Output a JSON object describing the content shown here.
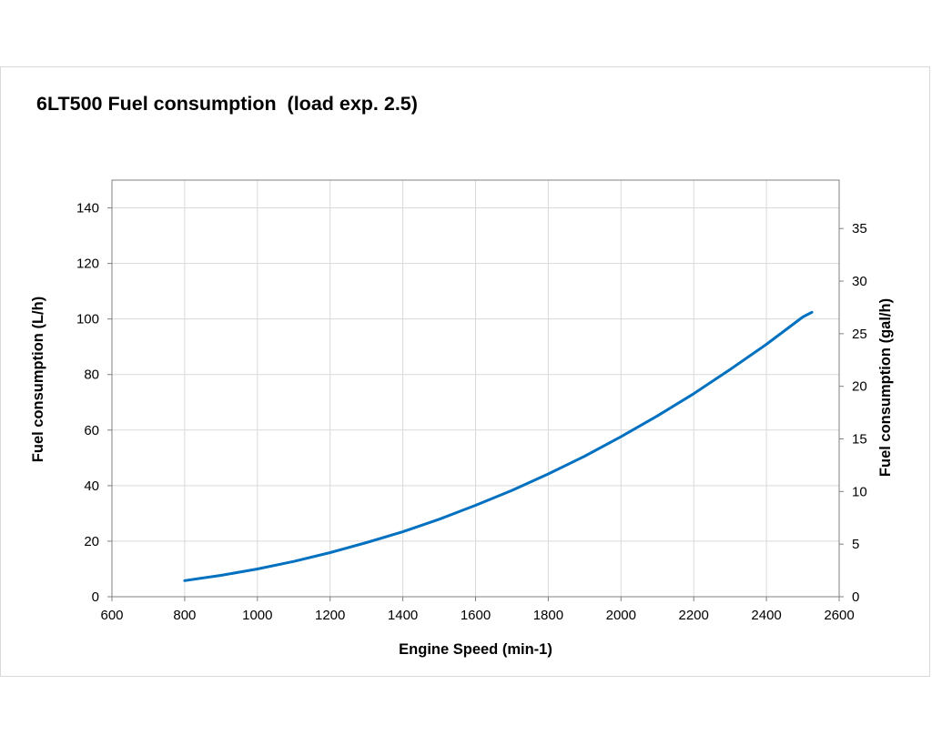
{
  "chart_data": {
    "type": "line",
    "title": "6LT500 Fuel consumption  (load exp. 2.5)",
    "xlabel": "Engine Speed (min-1)",
    "ylabel": "Fuel consumption (L/h)",
    "y2label": "Fuel consumption (gal/h)",
    "xlim": [
      600,
      2600
    ],
    "ylim": [
      0,
      150
    ],
    "y2lim": [
      0,
      39.6
    ],
    "x_ticks": [
      600,
      800,
      1000,
      1200,
      1400,
      1600,
      1800,
      2000,
      2200,
      2400,
      2600
    ],
    "y_ticks": [
      0,
      20,
      40,
      60,
      80,
      100,
      120,
      140
    ],
    "y2_ticks": [
      0,
      5,
      10,
      15,
      20,
      25,
      30,
      35
    ],
    "grid": true,
    "line_color": "#0070c0",
    "series": [
      {
        "name": "Fuel consumption",
        "x": [
          800,
          900,
          1000,
          1100,
          1200,
          1300,
          1400,
          1500,
          1600,
          1700,
          1800,
          1900,
          2000,
          2100,
          2200,
          2300,
          2400,
          2500,
          2525
        ],
        "values": [
          5.8,
          7.7,
          10.0,
          12.7,
          15.9,
          19.5,
          23.4,
          27.9,
          32.9,
          38.3,
          44.2,
          50.6,
          57.6,
          65.1,
          73.1,
          81.8,
          90.9,
          100.7,
          102.4
        ]
      }
    ]
  }
}
